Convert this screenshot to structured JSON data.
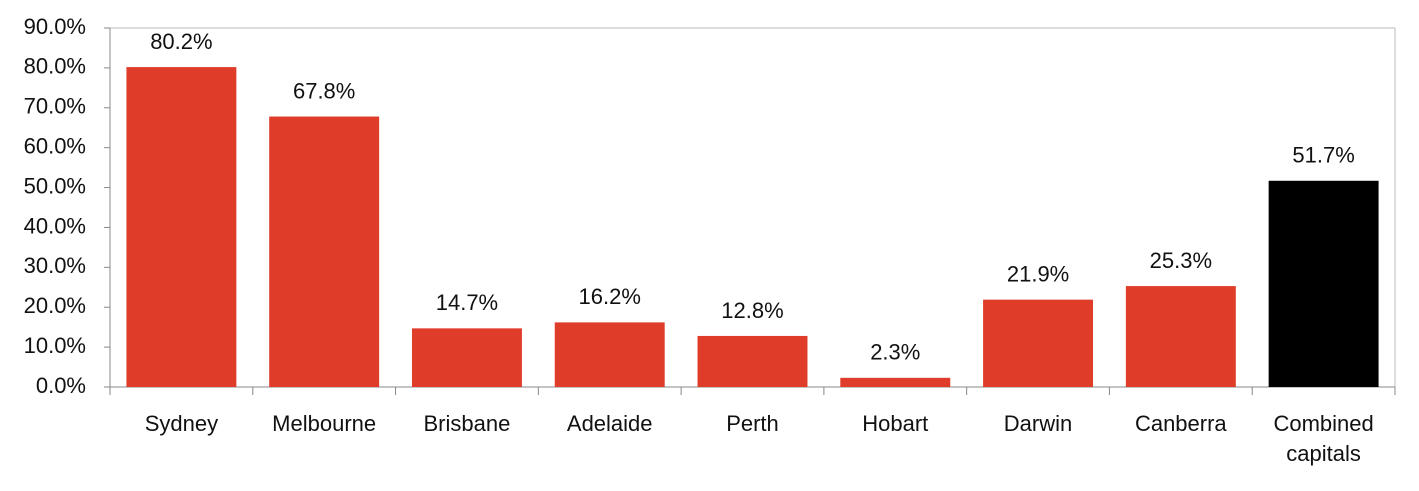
{
  "chart_data": {
    "type": "bar",
    "categories": [
      "Sydney",
      "Melbourne",
      "Brisbane",
      "Adelaide",
      "Perth",
      "Hobart",
      "Darwin",
      "Canberra",
      "Combined capitals"
    ],
    "values": [
      80.2,
      67.8,
      14.7,
      16.2,
      12.8,
      2.3,
      21.9,
      25.3,
      51.7
    ],
    "value_labels": [
      "80.2%",
      "67.8%",
      "14.7%",
      "16.2%",
      "12.8%",
      "2.3%",
      "21.9%",
      "25.3%",
      "51.7%"
    ],
    "colors": [
      "#e03c2a",
      "#e03c2a",
      "#e03c2a",
      "#e03c2a",
      "#e03c2a",
      "#e03c2a",
      "#e03c2a",
      "#e03c2a",
      "#000000"
    ],
    "ylim": [
      0,
      90
    ],
    "yticks": [
      {
        "value": 0,
        "label": "0.0%"
      },
      {
        "value": 10,
        "label": "10.0%"
      },
      {
        "value": 20,
        "label": "20.0%"
      },
      {
        "value": 30,
        "label": "30.0%"
      },
      {
        "value": 40,
        "label": "40.0%"
      },
      {
        "value": 50,
        "label": "50.0%"
      },
      {
        "value": 60,
        "label": "60.0%"
      },
      {
        "value": 70,
        "label": "70.0%"
      },
      {
        "value": 80,
        "label": "80.0%"
      },
      {
        "value": 90,
        "label": "90.0%"
      }
    ],
    "grid": false
  }
}
